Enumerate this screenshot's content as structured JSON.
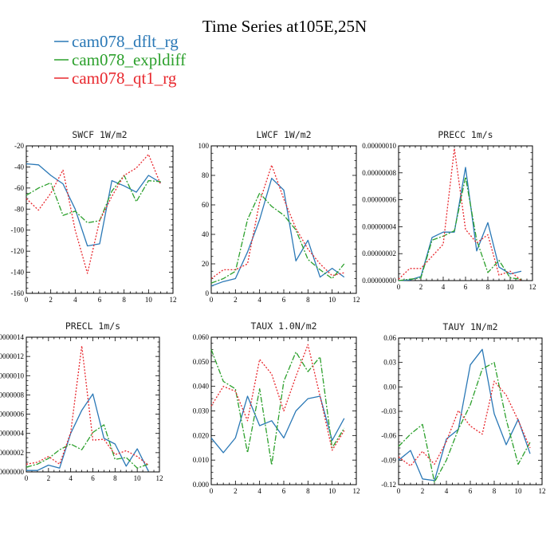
{
  "figure_title": "Time Series at105E,25N",
  "colors": {
    "dflt": "#2a78b6",
    "expl": "#2ca02c",
    "qt1": "#e8282e"
  },
  "legend": [
    {
      "label": "cam078_dflt_rg",
      "color": "#2a78b6"
    },
    {
      "label": "cam078_expldiff",
      "color": "#2ca02c"
    },
    {
      "label": "cam078_qt1_rg",
      "color": "#e8282e"
    }
  ],
  "chart_data": [
    {
      "type": "line",
      "title": "SWCF   1W/m2",
      "x": [
        0,
        1,
        2,
        3,
        4,
        5,
        6,
        7,
        8,
        9,
        10,
        11
      ],
      "xlim": [
        0,
        12
      ],
      "xticks": [
        0,
        2,
        4,
        6,
        8,
        10,
        12
      ],
      "ylim": [
        -160,
        -20
      ],
      "yticks": [
        -160,
        -140,
        -120,
        -100,
        -80,
        -60,
        -40,
        -20
      ],
      "ytick_labels": [
        "-160",
        "-140",
        "-120",
        "-100",
        "-80",
        "-60",
        "-40",
        "-20"
      ],
      "series": [
        {
          "name": "cam078_dflt_rg",
          "values": [
            -37,
            -38,
            -48,
            -56,
            -80,
            -115,
            -113,
            -53,
            -58,
            -64,
            -48,
            -55
          ]
        },
        {
          "name": "cam078_expldiff",
          "values": [
            -67,
            -60,
            -55,
            -86,
            -82,
            -93,
            -91,
            -63,
            -48,
            -73,
            -53,
            -54
          ]
        },
        {
          "name": "cam078_qt1_rg",
          "values": [
            -70,
            -81,
            -65,
            -43,
            -100,
            -141,
            -91,
            -68,
            -48,
            -41,
            -28,
            -57
          ]
        }
      ]
    },
    {
      "type": "line",
      "title": "LWCF   1W/m2",
      "x": [
        0,
        1,
        2,
        3,
        4,
        5,
        6,
        7,
        8,
        9,
        10,
        11
      ],
      "xlim": [
        0,
        12
      ],
      "xticks": [
        0,
        2,
        4,
        6,
        8,
        10,
        12
      ],
      "ylim": [
        0,
        100
      ],
      "yticks": [
        0,
        20,
        40,
        60,
        80,
        100
      ],
      "ytick_labels": [
        "0",
        "20",
        "40",
        "60",
        "80",
        "100"
      ],
      "series": [
        {
          "name": "cam078_dflt_rg",
          "values": [
            5,
            8,
            10,
            28,
            50,
            78,
            70,
            22,
            36,
            11,
            17,
            11
          ]
        },
        {
          "name": "cam078_expldiff",
          "values": [
            7,
            10,
            15,
            50,
            68,
            59,
            53,
            43,
            23,
            16,
            10,
            20
          ]
        },
        {
          "name": "cam078_qt1_rg",
          "values": [
            10,
            16,
            16,
            20,
            62,
            87,
            64,
            44,
            30,
            20,
            12,
            14
          ]
        }
      ]
    },
    {
      "type": "line",
      "title": "PRECC   1m/s",
      "x": [
        0,
        1,
        2,
        3,
        4,
        5,
        6,
        7,
        8,
        9,
        10,
        11
      ],
      "xlim": [
        0,
        12
      ],
      "xticks": [
        0,
        2,
        4,
        6,
        8,
        10,
        12
      ],
      "ylim": [
        0,
        1e-07
      ],
      "yticks": [
        0,
        2e-08,
        4e-08,
        6e-08,
        8e-08,
        1e-07
      ],
      "ytick_labels": [
        "0.00000000",
        "0.00000002",
        "0.00000004",
        "0.00000006",
        "0.00000008",
        "0.00000010"
      ],
      "series": [
        {
          "name": "cam078_dflt_rg",
          "values": [
            0,
            5e-10,
            3e-09,
            3.2e-08,
            3.6e-08,
            3.6e-08,
            8.4e-08,
            2.2e-08,
            4.3e-08,
            1e-08,
            5e-09,
            7e-09
          ]
        },
        {
          "name": "cam078_expldiff",
          "values": [
            0,
            1e-09,
            2e-09,
            3e-08,
            3.3e-08,
            3.7e-08,
            7.7e-08,
            3e-08,
            6e-09,
            1.5e-08,
            2e-09,
            1e-09
          ]
        },
        {
          "name": "cam078_qt1_rg",
          "values": [
            1e-09,
            9e-09,
            9e-09,
            1.8e-08,
            2.7e-08,
            9.8e-08,
            3.8e-08,
            2.8e-08,
            3.4e-08,
            4e-09,
            7e-09,
            0
          ]
        }
      ]
    },
    {
      "type": "line",
      "title": "PRECL   1m/s",
      "x": [
        0,
        1,
        2,
        3,
        4,
        5,
        6,
        7,
        8,
        9,
        10,
        11
      ],
      "xlim": [
        0,
        12
      ],
      "xticks": [
        0,
        2,
        4,
        6,
        8,
        10,
        12
      ],
      "ylim": [
        0,
        1.4e-08
      ],
      "yticks": [
        0,
        2e-09,
        4e-09,
        6e-09,
        8e-09,
        1e-08,
        1.2e-08,
        1.4e-08
      ],
      "ytick_labels": [
        "0000000",
        "0000002",
        "0000004",
        "0000006",
        "0000008",
        "0000010",
        "0000012",
        "0000014"
      ],
      "series": [
        {
          "name": "cam078_dflt_rg",
          "values": [
            1.5e-10,
            1.5e-10,
            7e-10,
            4e-10,
            4e-09,
            6.4e-09,
            8.1e-09,
            3.5e-09,
            2.9e-09,
            6e-10,
            2.4e-09,
            1e-10
          ]
        },
        {
          "name": "cam078_expldiff",
          "values": [
            5e-10,
            8e-10,
            1.4e-09,
            2.3e-09,
            2.9e-09,
            2.3e-09,
            4.1e-09,
            4.9e-09,
            1.3e-09,
            1.5e-09,
            4e-10,
            8e-10
          ]
        },
        {
          "name": "cam078_qt1_rg",
          "values": [
            8e-10,
            1e-09,
            1.6e-09,
            8e-10,
            4.1e-09,
            1.31e-08,
            3.3e-09,
            3.4e-09,
            1.8e-09,
            2.2e-09,
            1.6e-09,
            7e-10
          ]
        }
      ]
    },
    {
      "type": "line",
      "title": "TAUX   1.0N/m2",
      "x": [
        0,
        1,
        2,
        3,
        4,
        5,
        6,
        7,
        8,
        9,
        10,
        11
      ],
      "xlim": [
        0,
        12
      ],
      "xticks": [
        0,
        2,
        4,
        6,
        8,
        10,
        12
      ],
      "ylim": [
        0,
        0.06
      ],
      "yticks": [
        0,
        0.01,
        0.02,
        0.03,
        0.04,
        0.05,
        0.06
      ],
      "ytick_labels": [
        "0.000",
        "0.010",
        "0.020",
        "0.030",
        "0.040",
        "0.050",
        "0.060"
      ],
      "series": [
        {
          "name": "cam078_dflt_rg",
          "values": [
            0.019,
            0.013,
            0.019,
            0.036,
            0.024,
            0.026,
            0.019,
            0.03,
            0.035,
            0.036,
            0.018,
            0.027
          ]
        },
        {
          "name": "cam078_expldiff",
          "values": [
            0.055,
            0.042,
            0.039,
            0.013,
            0.039,
            0.008,
            0.042,
            0.054,
            0.046,
            0.052,
            0.015,
            0.023
          ]
        },
        {
          "name": "cam078_qt1_rg",
          "values": [
            0.032,
            0.04,
            0.038,
            0.026,
            0.051,
            0.045,
            0.03,
            0.044,
            0.057,
            0.036,
            0.014,
            0.022
          ]
        }
      ]
    },
    {
      "type": "line",
      "title": "TAUY   1N/m2",
      "x": [
        0,
        1,
        2,
        3,
        4,
        5,
        6,
        7,
        8,
        9,
        10,
        11
      ],
      "xlim": [
        0,
        12
      ],
      "xticks": [
        0,
        2,
        4,
        6,
        8,
        10,
        12
      ],
      "ylim": [
        -0.12,
        0.06
      ],
      "yticks": [
        -0.12,
        -0.09,
        -0.06,
        -0.03,
        0,
        0.03,
        0.06
      ],
      "ytick_labels": [
        "-0.12",
        "-0.09",
        "-0.06",
        "-0.03",
        "0.00",
        "0.03",
        "0.06"
      ],
      "series": [
        {
          "name": "cam078_dflt_rg",
          "values": [
            -0.09,
            -0.078,
            -0.113,
            -0.115,
            -0.064,
            -0.052,
            0.027,
            0.046,
            -0.033,
            -0.071,
            -0.04,
            -0.082
          ]
        },
        {
          "name": "cam078_expldiff",
          "values": [
            -0.073,
            -0.058,
            -0.046,
            -0.117,
            -0.09,
            -0.052,
            -0.022,
            0.022,
            0.03,
            -0.04,
            -0.095,
            -0.068
          ]
        },
        {
          "name": "cam078_qt1_rg",
          "values": [
            -0.086,
            -0.097,
            -0.079,
            -0.095,
            -0.067,
            -0.029,
            -0.048,
            -0.058,
            0.007,
            -0.01,
            -0.041,
            -0.075
          ]
        }
      ]
    }
  ]
}
